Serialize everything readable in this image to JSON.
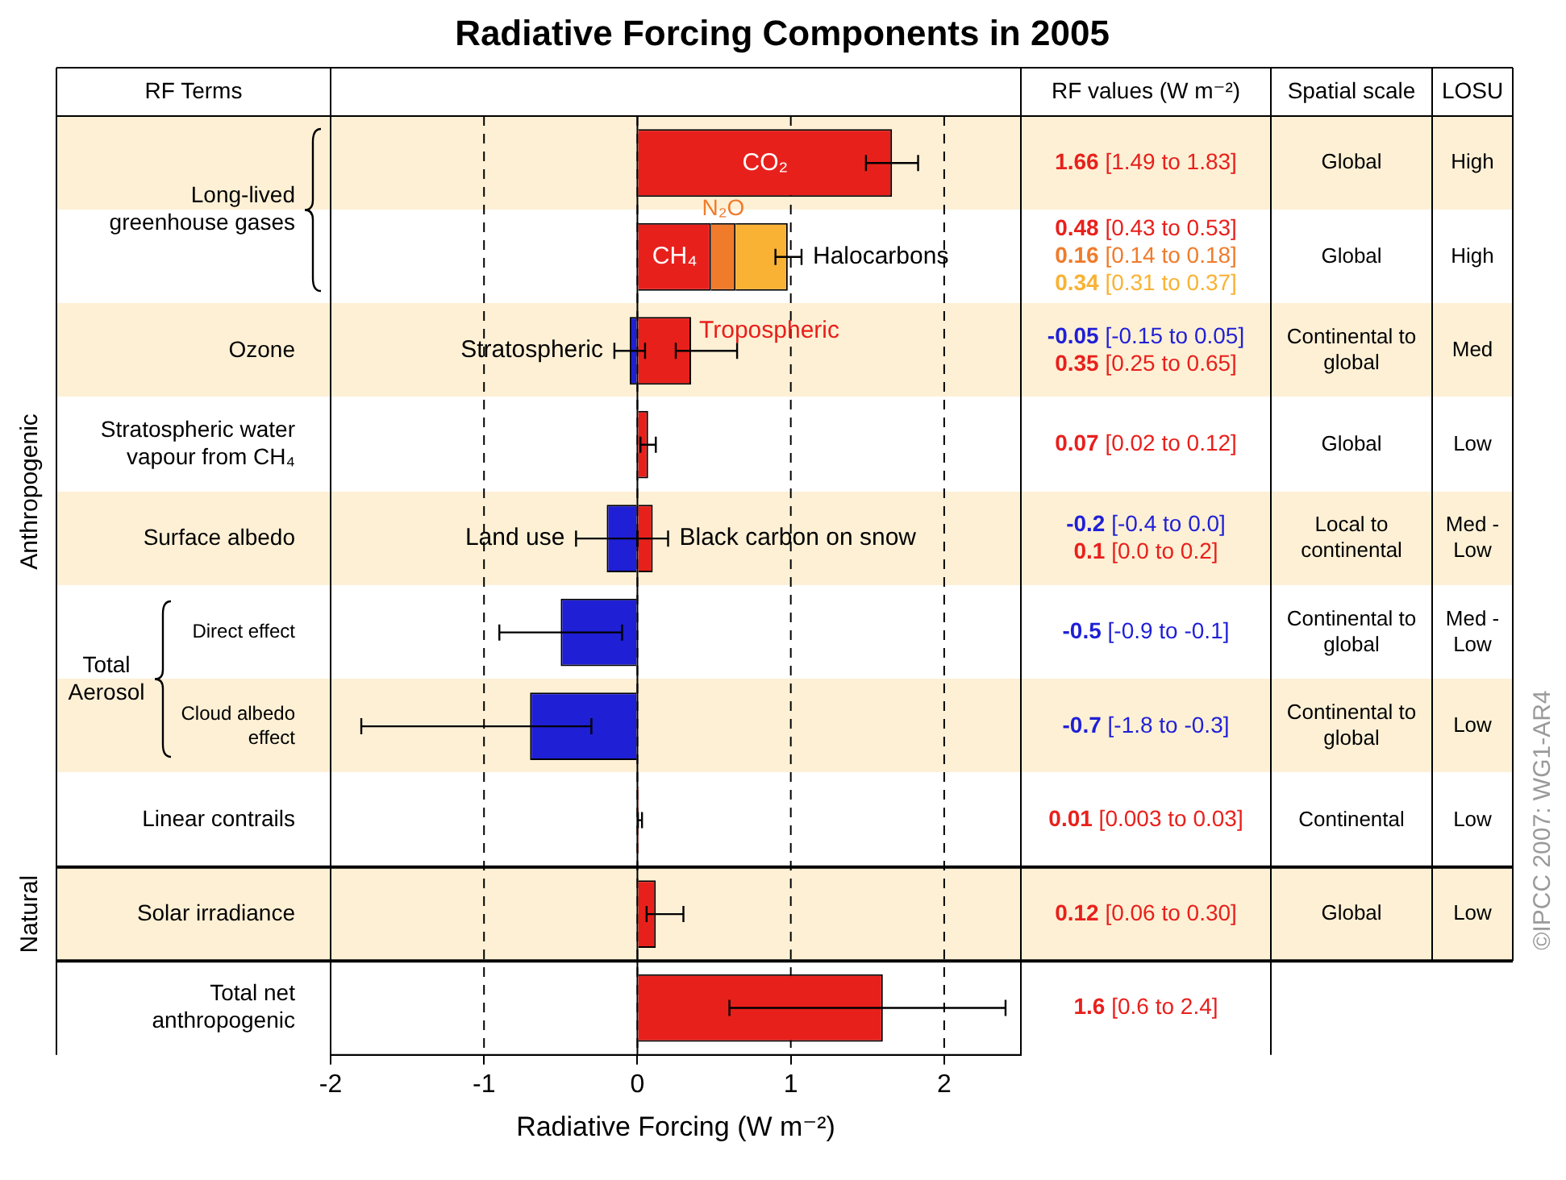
{
  "chart_data": {
    "type": "bar",
    "orientation": "horizontal",
    "stacked": true,
    "title": "Radiative Forcing Components in 2005",
    "xlabel": "Radiative Forcing (W m⁻²)",
    "categories": [
      "Long-lived greenhouse gases",
      null,
      "Ozone",
      "Stratospheric water vapour from CH₄",
      "Surface albedo",
      "Direct effect",
      "Cloud albedo effect",
      "Linear contrails",
      "Solar irradiance",
      "Total net anthropogenic"
    ],
    "xlim": [
      -2,
      2.5
    ],
    "xticks": [
      -2,
      -1,
      0,
      1,
      2
    ],
    "grid": "x",
    "legend": false,
    "series": [
      {
        "name": "CO₂",
        "color": "#e8201c",
        "values": [
          1.66,
          null,
          null,
          null,
          null,
          null,
          null,
          null,
          null,
          null
        ],
        "errors": [
          [
            1.49,
            1.83
          ],
          null,
          null,
          null,
          null,
          null,
          null,
          null,
          null,
          null
        ]
      },
      {
        "name": "CH₄",
        "color": "#e8201c",
        "values": [
          null,
          0.48,
          null,
          null,
          null,
          null,
          null,
          null,
          null,
          null
        ]
      },
      {
        "name": "N₂O",
        "color": "#f07b2b",
        "values": [
          null,
          0.16,
          null,
          null,
          null,
          null,
          null,
          null,
          null,
          null
        ]
      },
      {
        "name": "Halocarbons",
        "color": "#f9b233",
        "values": [
          null,
          0.34,
          null,
          null,
          null,
          null,
          null,
          null,
          null,
          null
        ],
        "errors": [
          null,
          [
            0.9,
            1.07
          ],
          null,
          null,
          null,
          null,
          null,
          null,
          null,
          null
        ]
      },
      {
        "name": "Stratospheric",
        "color": "#1f1fd6",
        "values": [
          null,
          null,
          -0.05,
          null,
          null,
          null,
          null,
          null,
          null,
          null
        ],
        "errors": [
          null,
          null,
          [
            -0.15,
            0.05
          ],
          null,
          null,
          null,
          null,
          null,
          null,
          null
        ]
      },
      {
        "name": "Tropospheric",
        "color": "#e8201c",
        "values": [
          null,
          null,
          0.35,
          null,
          null,
          null,
          null,
          null,
          null,
          null
        ],
        "errors": [
          null,
          null,
          [
            0.25,
            0.65
          ],
          null,
          null,
          null,
          null,
          null,
          null,
          null
        ]
      },
      {
        "name": "Land use",
        "color": "#1f1fd6",
        "values": [
          null,
          null,
          null,
          null,
          -0.2,
          null,
          null,
          null,
          null,
          null
        ],
        "errors": [
          null,
          null,
          null,
          null,
          [
            -0.4,
            0.0
          ],
          null,
          null,
          null,
          null,
          null
        ]
      },
      {
        "name": "Black carbon on snow",
        "color": "#e8201c",
        "values": [
          null,
          null,
          null,
          null,
          0.1,
          null,
          null,
          null,
          null,
          null
        ],
        "errors": [
          null,
          null,
          null,
          null,
          [
            0.0,
            0.2
          ],
          null,
          null,
          null,
          null,
          null
        ]
      },
      {
        "color": "#e8201c",
        "values": [
          null,
          null,
          null,
          0.07,
          null,
          null,
          null,
          0.01,
          0.12,
          1.6
        ],
        "errors": [
          null,
          null,
          null,
          [
            0.02,
            0.12
          ],
          null,
          null,
          null,
          [
            0.003,
            0.03
          ],
          [
            0.06,
            0.3
          ],
          [
            0.6,
            2.4
          ]
        ]
      },
      {
        "color": "#1f1fd6",
        "values": [
          null,
          null,
          null,
          null,
          null,
          -0.5,
          -0.7,
          null,
          null,
          null
        ],
        "errors": [
          null,
          null,
          null,
          null,
          null,
          [
            -0.9,
            -0.1
          ],
          [
            -1.8,
            -0.3
          ],
          null,
          null,
          null
        ]
      }
    ],
    "annotations": [
      "RF Terms",
      "RF values (W m⁻²)",
      "Spatial scale",
      "LOSU",
      "Global",
      "High",
      "Global",
      "High",
      "Continental to global",
      "Med",
      "Global",
      "Low",
      "Local to continental",
      "Med - Low",
      "Continental to global",
      "Med - Low",
      "Continental to global",
      "Low",
      "Continental",
      "Low",
      "Global",
      "Low",
      "Anthropogenic",
      "Natural",
      "Total Aerosol",
      "©IPCC 2007: WG1-AR4",
      "1.66 [1.49 to 1.83]",
      "0.48 [0.43 to 0.53]",
      "0.16 [0.14 to 0.18]",
      "0.34 [0.31 to 0.37]",
      "-0.05 [-0.15 to 0.05]",
      "0.35 [0.25 to 0.65]",
      "0.07 [0.02 to 0.12]",
      "-0.2 [-0.4 to 0.0]",
      "0.1 [0.0 to 0.2]",
      "-0.5 [-0.9 to -0.1]",
      "-0.7 [-1.8 to -0.3]",
      "0.01 [0.003 to 0.03]",
      "0.12 [0.06 to 0.30]",
      "1.6 [0.6 to 2.4]"
    ]
  }
}
